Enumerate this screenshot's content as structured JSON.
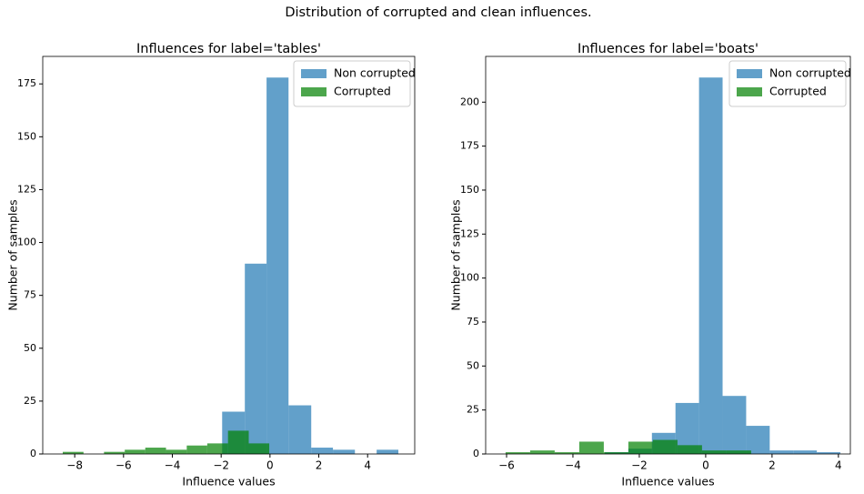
{
  "title": "Distribution of corrupted and clean influences.",
  "chart_data": [
    {
      "type": "histogram",
      "title": "Influences for label='tables'",
      "xlabel": "Influence values",
      "ylabel": "Number of samples",
      "xlim": [
        -9.31,
        5.93
      ],
      "ylim": [
        0,
        188
      ],
      "xticks": [
        {
          "value": -8,
          "label": "−8"
        },
        {
          "value": -6,
          "label": "−6"
        },
        {
          "value": -4,
          "label": "−4"
        },
        {
          "value": -2,
          "label": "−2"
        },
        0,
        2,
        4
      ],
      "yticks": [
        0,
        25,
        50,
        75,
        100,
        125,
        150,
        175
      ],
      "legend": "upper right",
      "series": [
        {
          "name": "Non corrupted",
          "color": "#1f77b4",
          "bins": [
            -1.96,
            -1.03,
            -0.14,
            0.76,
            1.69,
            2.58,
            3.48,
            4.37,
            5.26
          ],
          "values": [
            20,
            90,
            178,
            23,
            3,
            2,
            0,
            2
          ]
        },
        {
          "name": "Corrupted",
          "color": "#008000",
          "bins": [
            -8.49,
            -7.64,
            -6.8,
            -5.95,
            -5.11,
            -4.26,
            -3.41,
            -2.57,
            -1.72,
            -0.87,
            -0.03
          ],
          "values": [
            1,
            0,
            1,
            2,
            3,
            2,
            4,
            5,
            11,
            5
          ]
        }
      ]
    },
    {
      "type": "histogram",
      "title": "Influences for label='boats'",
      "xlabel": "Influence values",
      "ylabel": "Number of samples",
      "xlim": [
        -6.63,
        4.36
      ],
      "ylim": [
        0,
        226
      ],
      "xticks": [
        {
          "value": -6,
          "label": "−6"
        },
        {
          "value": -4,
          "label": "−4"
        },
        {
          "value": -2,
          "label": "−2"
        },
        0,
        2,
        4
      ],
      "yticks": [
        0,
        25,
        50,
        75,
        100,
        125,
        150,
        175,
        200
      ],
      "legend": "upper right",
      "series": [
        {
          "name": "Non corrupted",
          "color": "#1f77b4",
          "bins": [
            -3.04,
            -2.33,
            -1.62,
            -0.91,
            -0.2,
            0.51,
            1.22,
            1.93,
            2.64,
            3.35,
            4.06
          ],
          "values": [
            1,
            3,
            12,
            29,
            214,
            33,
            16,
            2,
            2,
            1
          ]
        },
        {
          "name": "Corrupted",
          "color": "#008000",
          "bins": [
            -6.03,
            -5.29,
            -4.55,
            -3.81,
            -3.07,
            -2.33,
            -1.59,
            -0.85,
            -0.11,
            0.63,
            1.37
          ],
          "values": [
            1,
            2,
            1,
            7,
            1,
            7,
            8,
            5,
            2,
            2
          ]
        }
      ]
    }
  ]
}
